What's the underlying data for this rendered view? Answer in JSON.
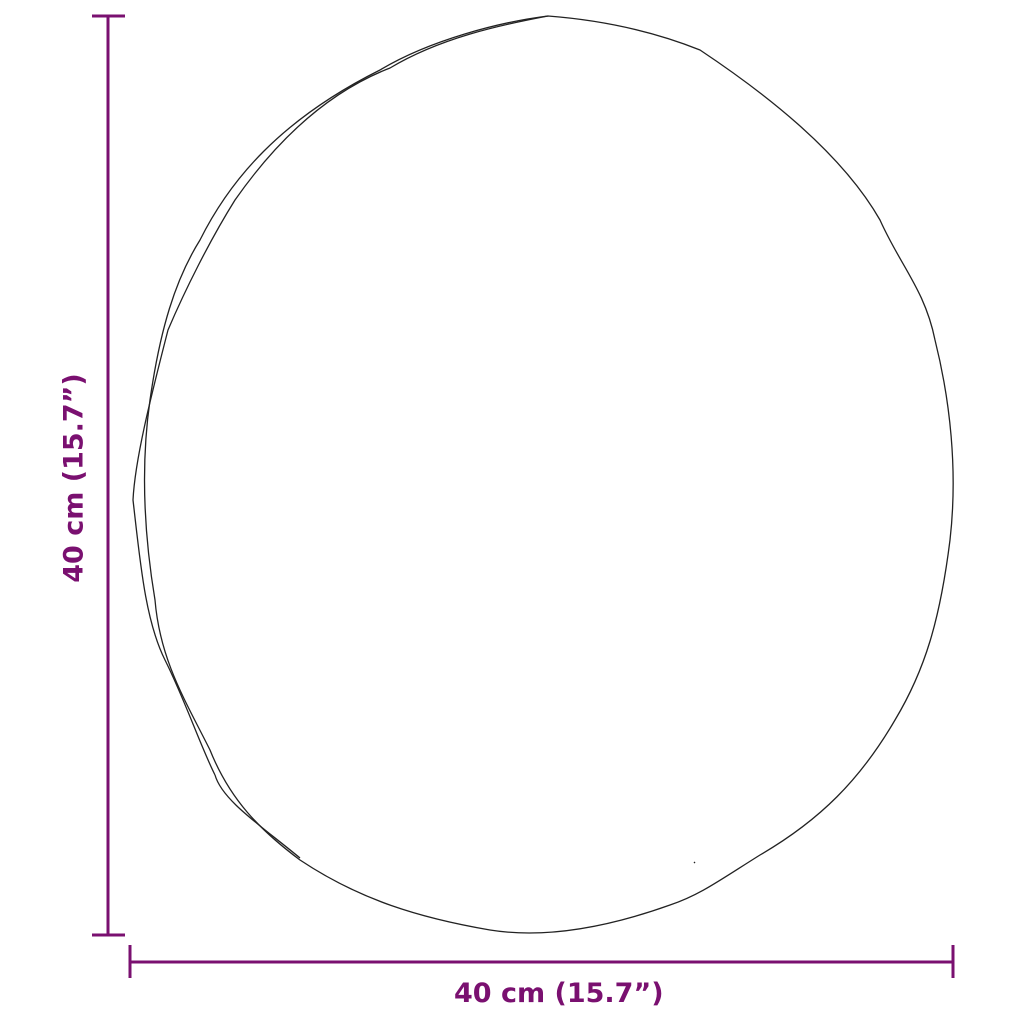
{
  "dimensions": {
    "width_label": "40 cm (15.7”)",
    "height_label": "40 cm (15.7”)"
  },
  "colors": {
    "dimension": "#7a1070",
    "outline": "#222222"
  }
}
